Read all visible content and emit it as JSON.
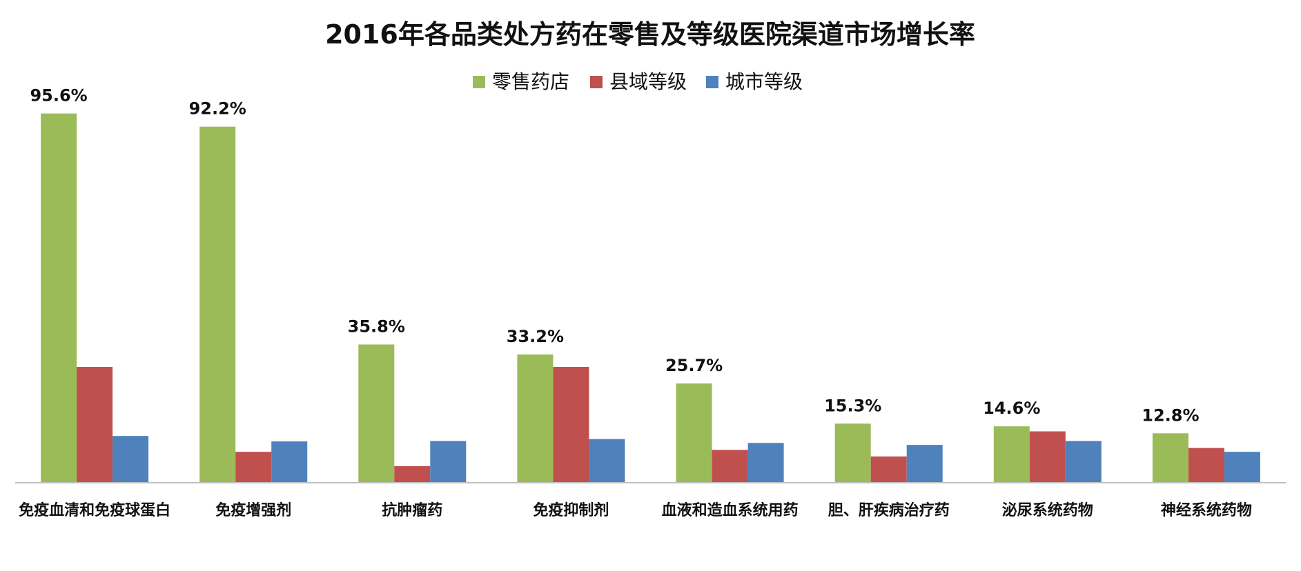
{
  "chart_data": {
    "type": "bar",
    "title": "2016年各品类处方药在零售及等级医院渠道市场增长率",
    "xlabel": "",
    "ylabel": "",
    "ylim": [
      0,
      100
    ],
    "grid": false,
    "legend_position": "top-center",
    "categories": [
      "免疫血清和免疫球蛋白",
      "免疫增强剂",
      "抗肿瘤药",
      "免疫抑制剂",
      "血液和造血系统用药",
      "胆、肝疾病治疗药",
      "泌尿系统药物",
      "神经系统药物"
    ],
    "series": [
      {
        "name": "零售药店",
        "color": "#9BBB59",
        "values": [
          95.6,
          92.2,
          35.8,
          33.2,
          25.7,
          15.3,
          14.6,
          12.8
        ],
        "labels": [
          "95.6%",
          "92.2%",
          "35.8%",
          "33.2%",
          "25.7%",
          "15.3%",
          "14.6%",
          "12.8%"
        ]
      },
      {
        "name": "县域等级",
        "color": "#C0504D",
        "values": [
          30.0,
          8.0,
          4.3,
          30.0,
          8.5,
          6.8,
          13.3,
          9.0
        ]
      },
      {
        "name": "城市等级",
        "color": "#4F81BD",
        "values": [
          12.1,
          10.7,
          10.8,
          11.3,
          10.3,
          9.8,
          10.8,
          8.0
        ]
      }
    ],
    "axis_color": "#BFBFBF"
  }
}
